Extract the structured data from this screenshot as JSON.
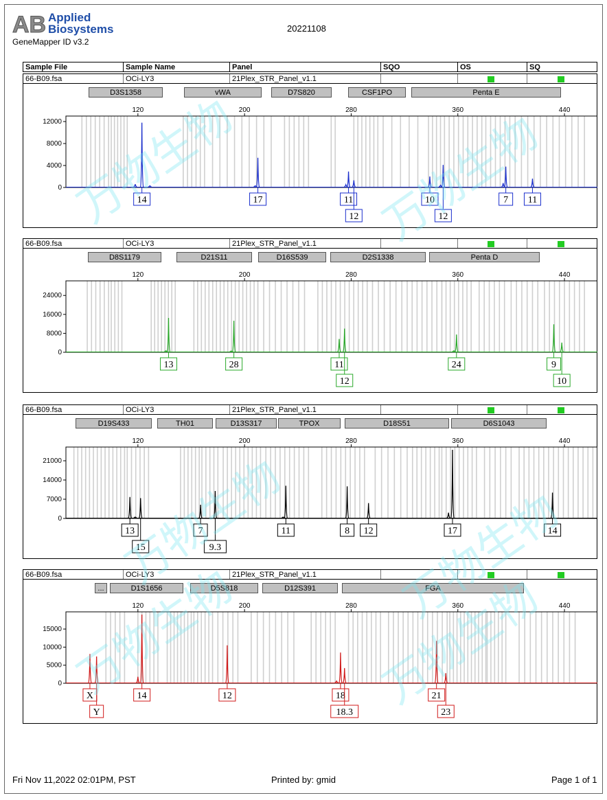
{
  "header": {
    "logo_ab": "AB",
    "logo_line1": "Applied",
    "logo_line2": "Biosystems",
    "software": "GeneMapper ID v3.2",
    "run": "20221108"
  },
  "columns": [
    "Sample File",
    "Sample Name",
    "Panel",
    "SQO",
    "OS",
    "SQ"
  ],
  "watermark_text": "万物生物",
  "footer": {
    "date": "Fri Nov 11,2022 02:01PM, PST",
    "printed_by": "Printed by: gmid",
    "page": "Page 1 of 1"
  },
  "chart_data": [
    {
      "type": "line",
      "color": "#1a2ecc",
      "sample_file": "66-B09.fsa",
      "sample_name": "OCi-LY3",
      "panel": "21Plex_STR_Panel_v1.1",
      "x_ticks": [
        "120",
        "200",
        "280",
        "360",
        "440"
      ],
      "y_ticks": [
        "12000",
        "8000",
        "4000",
        "0"
      ],
      "ylim": [
        0,
        12500
      ],
      "markers": [
        "D3S1358",
        "vWA",
        "D7S820",
        "CSF1PO",
        "Penta E"
      ],
      "peaks": [
        {
          "x": 118,
          "y": 600
        },
        {
          "x": 123,
          "y": 11800
        },
        {
          "x": 129,
          "y": 300
        },
        {
          "x": 208,
          "y": 300
        },
        {
          "x": 210,
          "y": 5400
        },
        {
          "x": 276,
          "y": 500
        },
        {
          "x": 278,
          "y": 2900
        },
        {
          "x": 282,
          "y": 1300
        },
        {
          "x": 339,
          "y": 2000
        },
        {
          "x": 347,
          "y": 400
        },
        {
          "x": 349,
          "y": 4100
        },
        {
          "x": 394,
          "y": 800
        },
        {
          "x": 396,
          "y": 3800
        },
        {
          "x": 416,
          "y": 1600
        }
      ],
      "alleles": [
        {
          "label": "14",
          "x": 123,
          "row": 1
        },
        {
          "label": "17",
          "x": 210,
          "row": 1
        },
        {
          "label": "11",
          "x": 278,
          "row": 1
        },
        {
          "label": "12",
          "x": 282,
          "row": 2
        },
        {
          "label": "10",
          "x": 339,
          "row": 1
        },
        {
          "label": "12",
          "x": 349,
          "row": 2
        },
        {
          "label": "7",
          "x": 396,
          "row": 1
        },
        {
          "label": "11",
          "x": 416,
          "row": 1
        }
      ]
    },
    {
      "type": "line",
      "color": "#2aa82a",
      "sample_file": "66-B09.fsa",
      "sample_name": "OCi-LY3",
      "panel": "21Plex_STR_Panel_v1.1",
      "x_ticks": [
        "120",
        "200",
        "280",
        "360",
        "440"
      ],
      "y_ticks": [
        "24000",
        "16000",
        "8000",
        "0"
      ],
      "ylim": [
        0,
        29000
      ],
      "markers": [
        "D8S1179",
        "D21S11",
        "D16S539",
        "D2S1338",
        "Penta D"
      ],
      "peaks": [
        {
          "x": 141,
          "y": 600
        },
        {
          "x": 143,
          "y": 14500
        },
        {
          "x": 190,
          "y": 500
        },
        {
          "x": 192,
          "y": 13300
        },
        {
          "x": 271,
          "y": 5600
        },
        {
          "x": 275,
          "y": 10000
        },
        {
          "x": 357,
          "y": 600
        },
        {
          "x": 359,
          "y": 7500
        },
        {
          "x": 432,
          "y": 11800
        },
        {
          "x": 438,
          "y": 4100
        }
      ],
      "alleles": [
        {
          "label": "13",
          "x": 143,
          "row": 1
        },
        {
          "label": "28",
          "x": 192,
          "row": 1
        },
        {
          "label": "11",
          "x": 271,
          "row": 1
        },
        {
          "label": "12",
          "x": 275,
          "row": 2
        },
        {
          "label": "24",
          "x": 359,
          "row": 1
        },
        {
          "label": "9",
          "x": 432,
          "row": 1
        },
        {
          "label": "10",
          "x": 438,
          "row": 2
        }
      ]
    },
    {
      "type": "line",
      "color": "#000000",
      "sample_file": "66-B09.fsa",
      "sample_name": "OCi-LY3",
      "panel": "21Plex_STR_Panel_v1.1",
      "x_ticks": [
        "120",
        "200",
        "280",
        "360",
        "440"
      ],
      "y_ticks": [
        "21000",
        "14000",
        "7000",
        "0"
      ],
      "ylim": [
        0,
        25000
      ],
      "markers": [
        "D19S433",
        "TH01",
        "D13S317",
        "TPOX",
        "D18S51",
        "D6S1043"
      ],
      "peaks": [
        {
          "x": 114,
          "y": 7800
        },
        {
          "x": 118,
          "y": 500
        },
        {
          "x": 122,
          "y": 7400
        },
        {
          "x": 167,
          "y": 5000
        },
        {
          "x": 178,
          "y": 10000
        },
        {
          "x": 229,
          "y": 500
        },
        {
          "x": 231,
          "y": 11900
        },
        {
          "x": 277,
          "y": 11700
        },
        {
          "x": 293,
          "y": 5600
        },
        {
          "x": 353,
          "y": 2100
        },
        {
          "x": 356,
          "y": 25000
        },
        {
          "x": 431,
          "y": 9400
        }
      ],
      "alleles": [
        {
          "label": "13",
          "x": 114,
          "row": 1
        },
        {
          "label": "15",
          "x": 122,
          "row": 2
        },
        {
          "label": "7",
          "x": 167,
          "row": 1
        },
        {
          "label": "9.3",
          "x": 178,
          "row": 2
        },
        {
          "label": "11",
          "x": 231,
          "row": 1
        },
        {
          "label": "8",
          "x": 277,
          "row": 1
        },
        {
          "label": "12",
          "x": 293,
          "row": 1
        },
        {
          "label": "17",
          "x": 356,
          "row": 1
        },
        {
          "label": "14",
          "x": 431,
          "row": 1
        }
      ]
    },
    {
      "type": "line",
      "color": "#d01a1a",
      "sample_file": "66-B09.fsa",
      "sample_name": "OCi-LY3",
      "panel": "21Plex_STR_Panel_v1.1",
      "x_ticks": [
        "120",
        "200",
        "280",
        "360",
        "440"
      ],
      "y_ticks": [
        "15000",
        "10000",
        "5000",
        "0"
      ],
      "ylim": [
        0,
        19000
      ],
      "markers": [
        "...",
        "D1S1656",
        "D5S818",
        "D12S391",
        "FGA"
      ],
      "peaks": [
        {
          "x": 84,
          "y": 8100
        },
        {
          "x": 89,
          "y": 7400
        },
        {
          "x": 120,
          "y": 1800
        },
        {
          "x": 123,
          "y": 19000
        },
        {
          "x": 187,
          "y": 10500
        },
        {
          "x": 269,
          "y": 600
        },
        {
          "x": 272,
          "y": 8500
        },
        {
          "x": 275,
          "y": 4200
        },
        {
          "x": 344,
          "y": 11700
        },
        {
          "x": 351,
          "y": 2800
        }
      ],
      "alleles": [
        {
          "label": "X",
          "x": 84,
          "row": 1
        },
        {
          "label": "Y",
          "x": 89,
          "row": 2
        },
        {
          "label": "14",
          "x": 123,
          "row": 1
        },
        {
          "label": "12",
          "x": 187,
          "row": 1
        },
        {
          "label": "18",
          "x": 272,
          "row": 1
        },
        {
          "label": "18.3",
          "x": 275,
          "row": 2
        },
        {
          "label": "21",
          "x": 344,
          "row": 1
        },
        {
          "label": "23",
          "x": 351,
          "row": 2
        }
      ]
    }
  ]
}
